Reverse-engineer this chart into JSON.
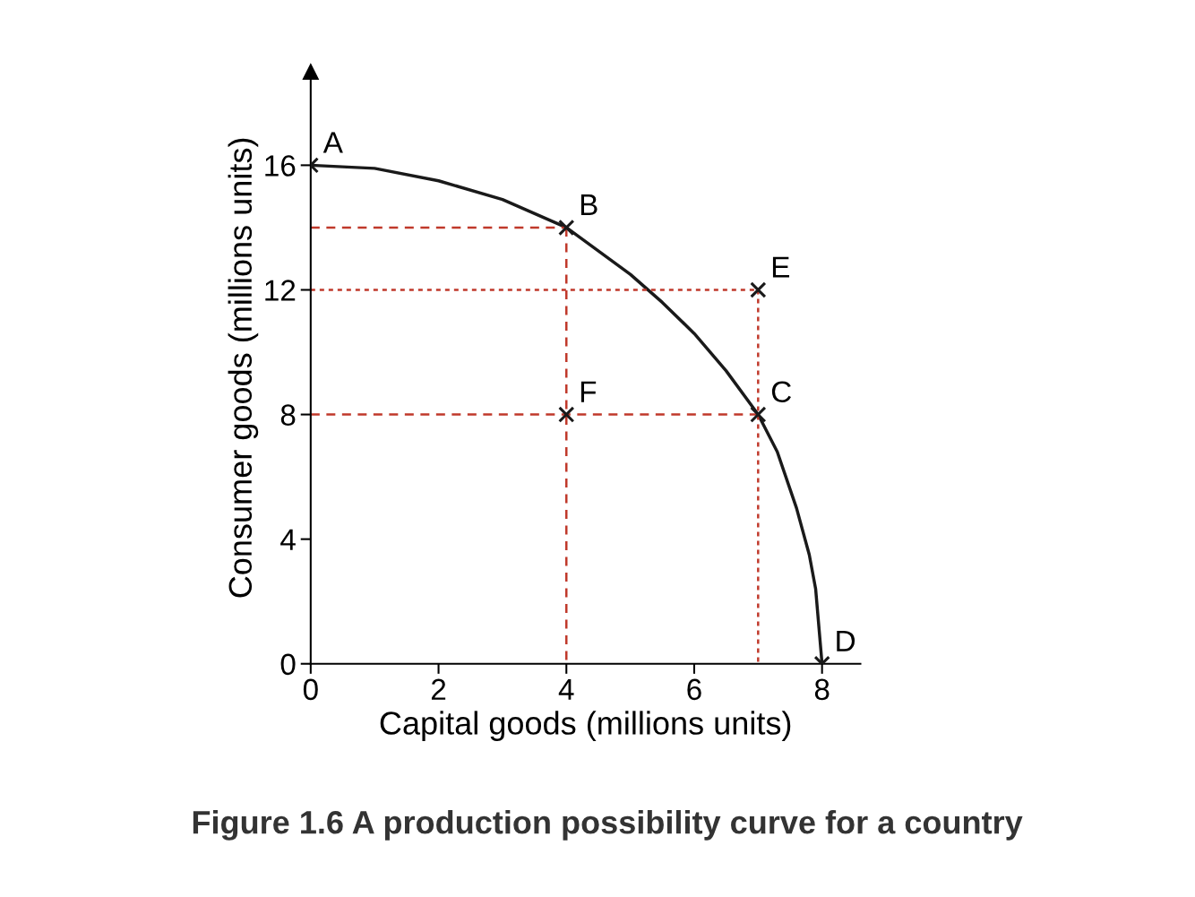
{
  "chart_data": {
    "type": "line",
    "xlabel": "Capital goods (millions units)",
    "ylabel": "Consumer goods (millions units)",
    "xlim": [
      0,
      8.6
    ],
    "ylim": [
      0,
      19
    ],
    "xticks": [
      0,
      2,
      4,
      6,
      8
    ],
    "yticks": [
      0,
      4,
      8,
      12,
      16
    ],
    "grid": false,
    "legend": false,
    "series": [
      {
        "color": "#1a1a1a",
        "line_style": "solid",
        "x": [
          0,
          1,
          2,
          3,
          4,
          5,
          5.5,
          6,
          6.5,
          7,
          7.3,
          7.6,
          7.8,
          7.9,
          8
        ],
        "values": [
          16,
          15.9,
          15.5,
          14.9,
          14,
          12.5,
          11.6,
          10.6,
          9.4,
          8,
          6.8,
          5,
          3.5,
          2.4,
          0
        ]
      },
      {
        "type": "line",
        "color": "#c0392b",
        "line_style": "dashed",
        "x": [
          0,
          4
        ],
        "values": [
          14,
          14
        ]
      },
      {
        "type": "line",
        "color": "#c0392b",
        "line_style": "dashed",
        "x": [
          4,
          4
        ],
        "values": [
          14,
          0
        ]
      },
      {
        "type": "line",
        "color": "#c0392b",
        "line_style": "dotted",
        "x": [
          0,
          7
        ],
        "values": [
          12,
          12
        ]
      },
      {
        "type": "line",
        "color": "#c0392b",
        "line_style": "dotted",
        "x": [
          7,
          7
        ],
        "values": [
          12,
          0
        ]
      },
      {
        "type": "line",
        "color": "#c0392b",
        "line_style": "dashed",
        "x": [
          0,
          7
        ],
        "values": [
          8,
          8
        ]
      },
      {
        "type": "scatter",
        "color": "#1a1a1a",
        "marker": "cross",
        "x": [
          0,
          4,
          7,
          8,
          7,
          4
        ],
        "values": [
          16,
          14,
          8,
          0,
          12,
          8
        ]
      }
    ],
    "annotations": [
      {
        "text": "A",
        "x": 0,
        "y": 16
      },
      {
        "text": "B",
        "x": 4,
        "y": 14
      },
      {
        "text": "C",
        "x": 7,
        "y": 8
      },
      {
        "text": "D",
        "x": 8,
        "y": 0
      },
      {
        "text": "E",
        "x": 7,
        "y": 12
      },
      {
        "text": "F",
        "x": 4,
        "y": 8
      },
      "Figure 1.6 A production possibility curve for a country"
    ]
  }
}
